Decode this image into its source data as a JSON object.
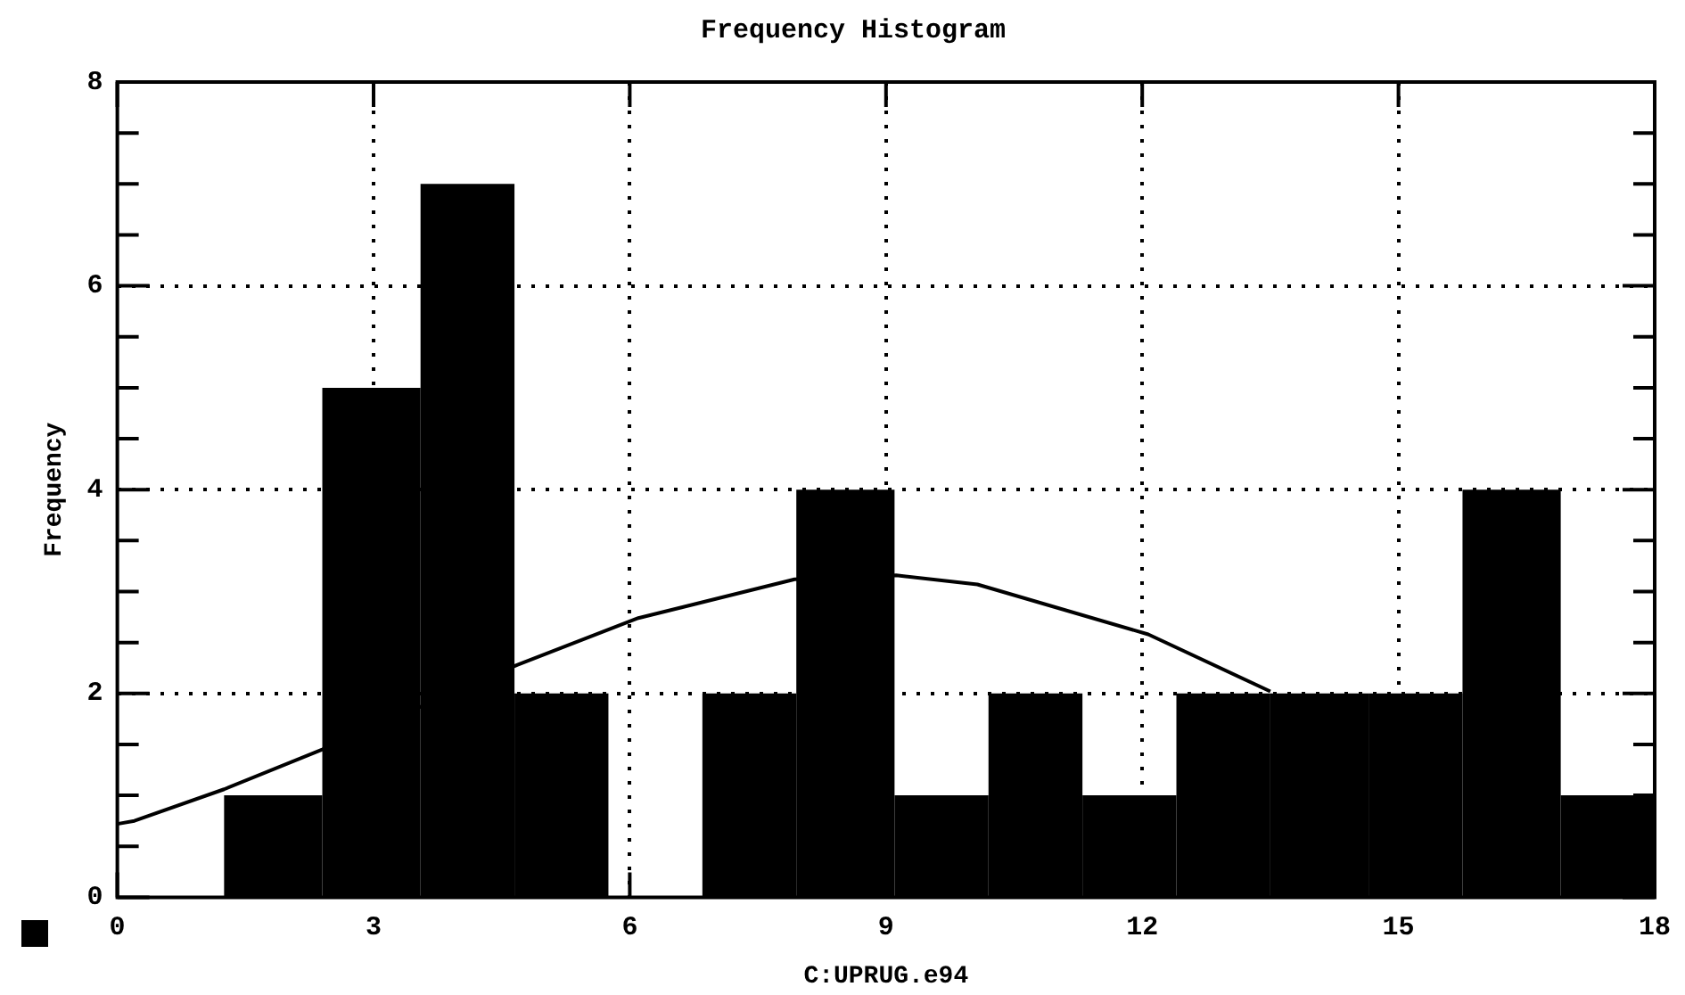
{
  "chart_data": {
    "type": "histogram",
    "title": "Frequency Histogram",
    "xlabel": "C:UPRUG.e94",
    "ylabel": "Frequency",
    "bins": [
      1.25,
      2.4,
      3.55,
      4.65,
      5.75,
      6.85,
      7.95,
      9.1,
      10.2,
      11.3,
      12.4,
      13.5,
      14.65,
      15.75,
      16.9,
      18
    ],
    "values": [
      1,
      5,
      7,
      2,
      0,
      2,
      4,
      1,
      2,
      1,
      2,
      2,
      2,
      4,
      1
    ],
    "color": "#000000",
    "series": [
      {
        "type": "line",
        "color": "#000000",
        "x": [
          0,
          0.2,
          1.25,
          2.4,
          4.68,
          6.1,
          7.93,
          9.12,
          10.07,
          12.07,
          13.5
        ],
        "values": [
          0.72,
          0.75,
          1.06,
          1.45,
          2.28,
          2.74,
          3.12,
          3.16,
          3.07,
          2.58,
          2.02
        ]
      }
    ],
    "xlim": [
      0,
      18
    ],
    "xticks": [
      0,
      3,
      6,
      9,
      12,
      15,
      18
    ],
    "ylim": [
      0,
      8
    ],
    "yticks": [
      0,
      {
        "value": 0.5,
        "label": null
      },
      {
        "value": 1,
        "label": null
      },
      {
        "value": 1.5,
        "label": null
      },
      2,
      {
        "value": 2.5,
        "label": null
      },
      {
        "value": 3,
        "label": null
      },
      {
        "value": 3.5,
        "label": null
      },
      4,
      {
        "value": 4.5,
        "label": null
      },
      {
        "value": 5,
        "label": null
      },
      {
        "value": 5.5,
        "label": null
      },
      6,
      {
        "value": 6.5,
        "label": null
      },
      {
        "value": 7,
        "label": null
      },
      {
        "value": 7.5,
        "label": null
      },
      8
    ],
    "grid": true,
    "legend": false,
    "marker": "none",
    "line_style": "solid"
  }
}
